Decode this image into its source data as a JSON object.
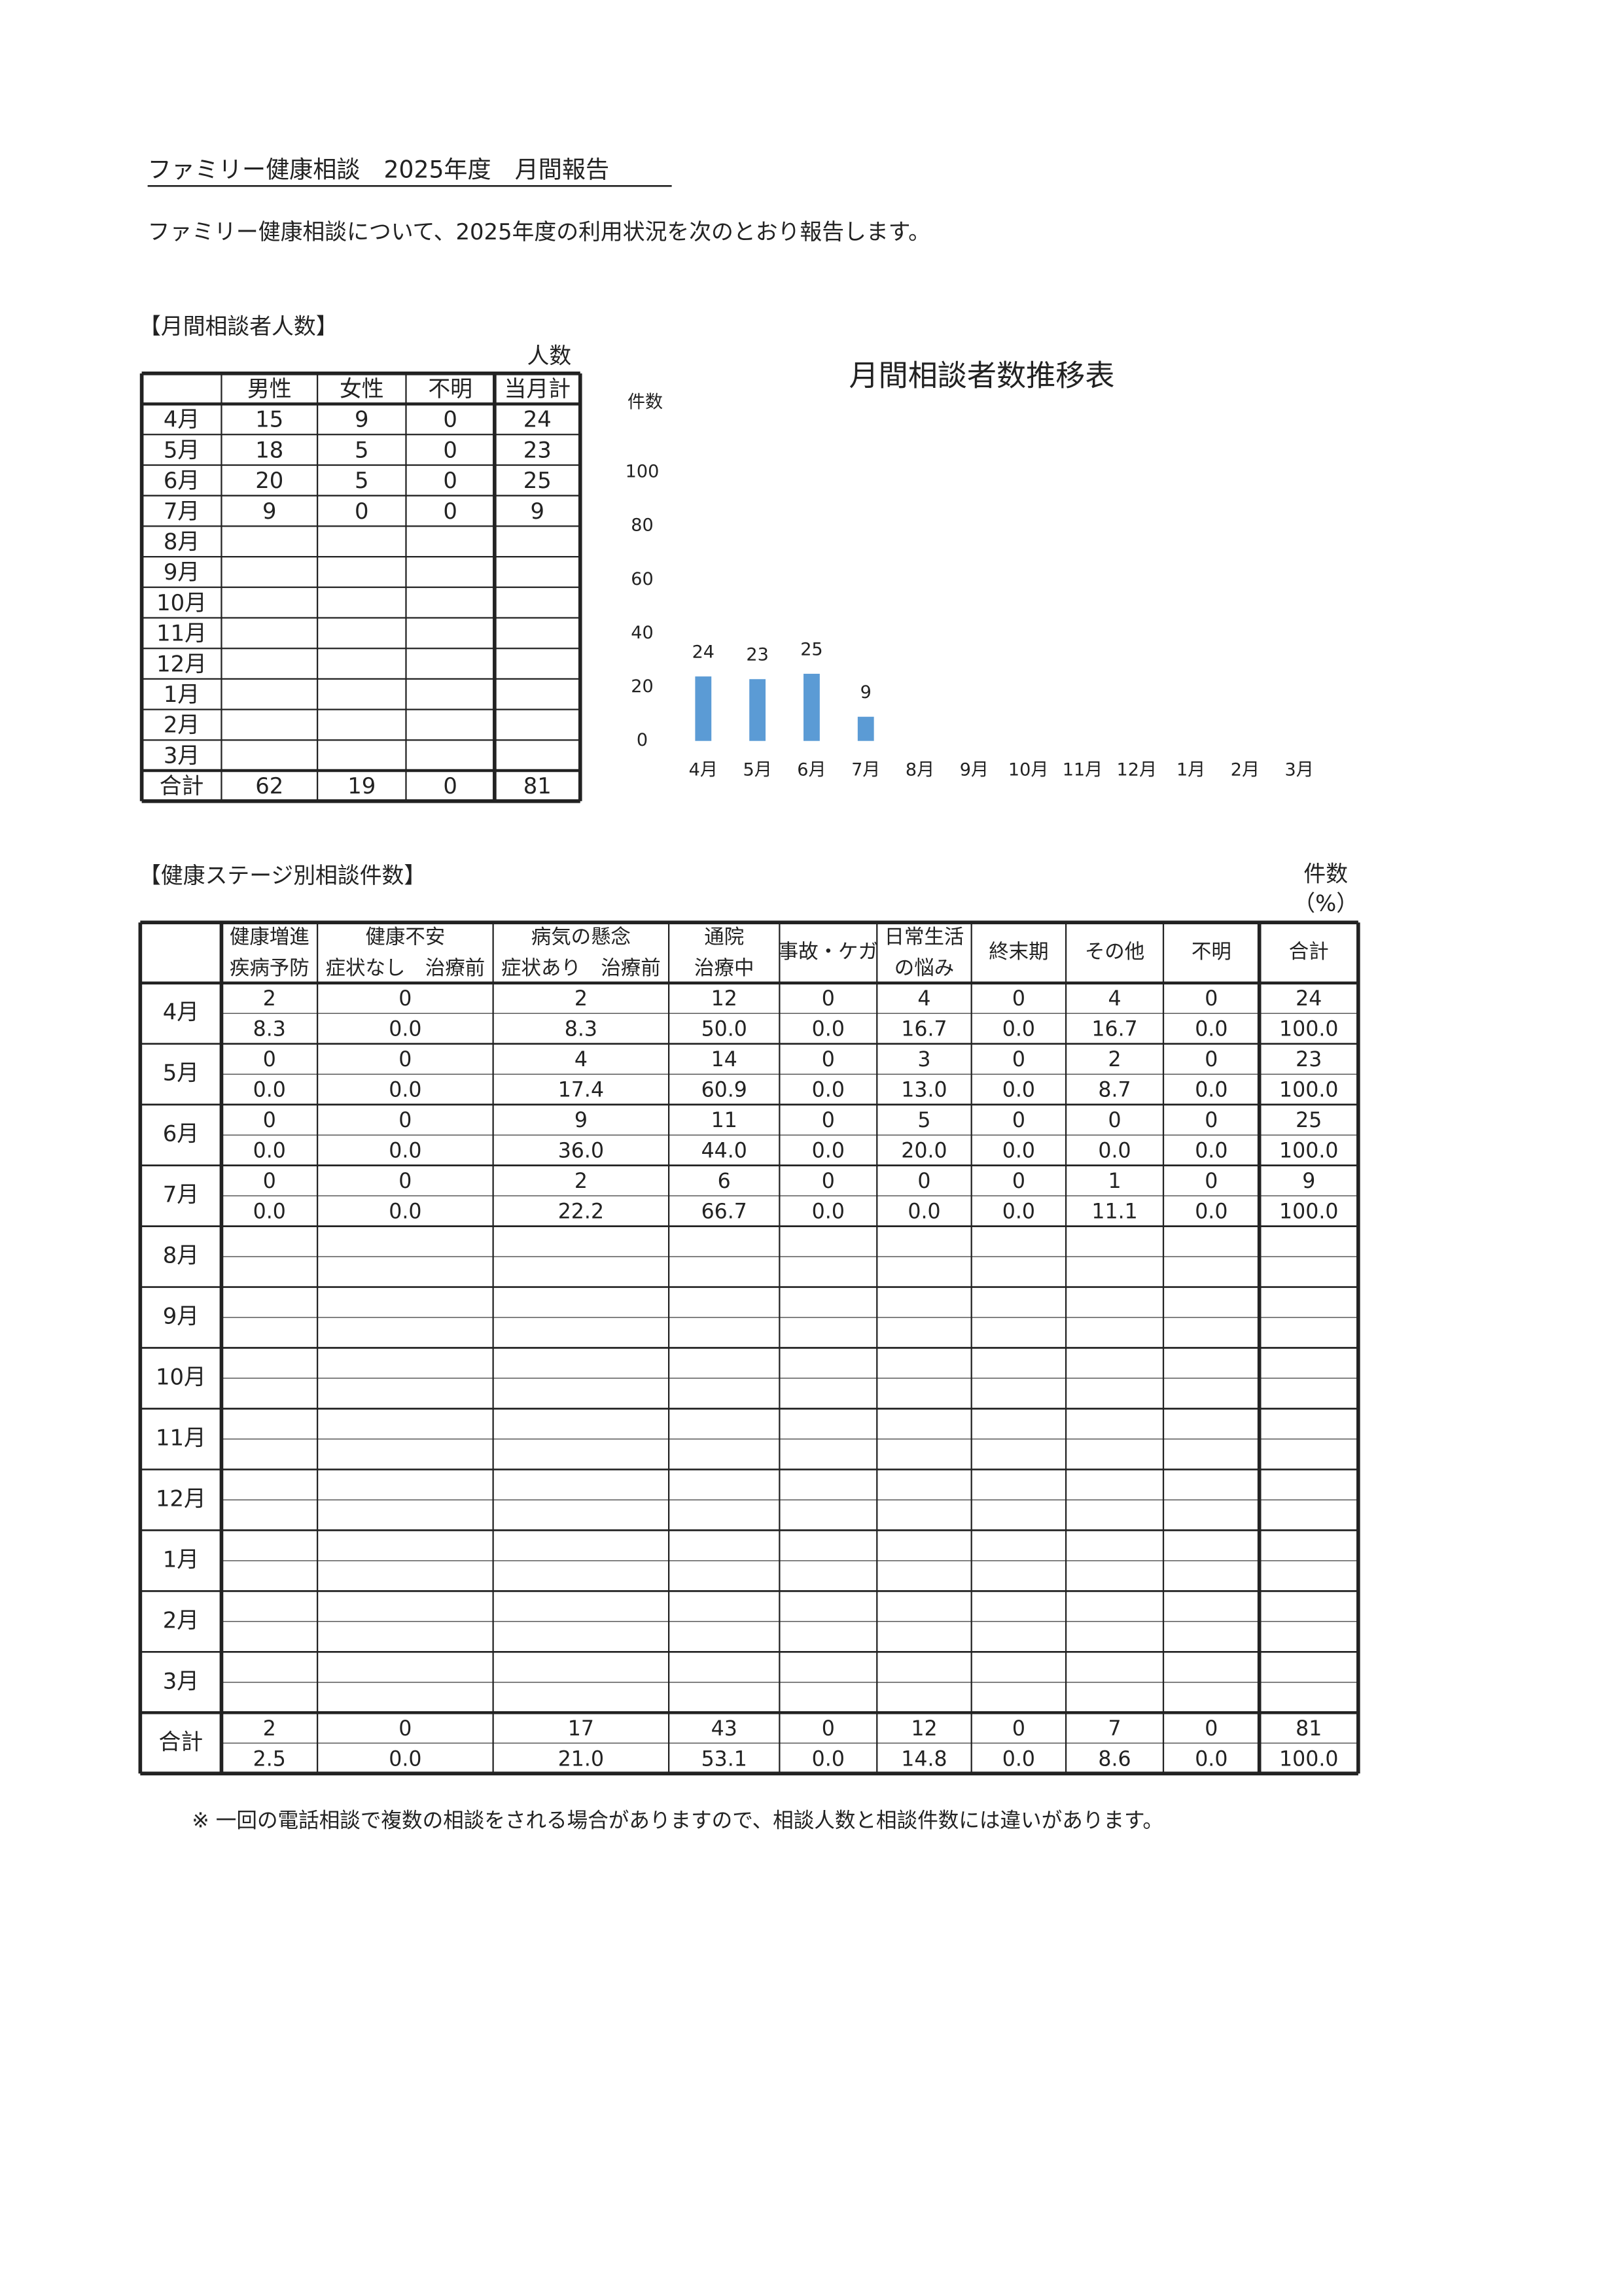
{
  "header": {
    "title": "ファミリー健康相談　2025年度　月間報告",
    "intro": "ファミリー健康相談について、2025年度の利用状況を次のとおり報告します。"
  },
  "table1": {
    "section": "【月間相談者人数】",
    "unit": "人数",
    "columns": [
      "男性",
      "女性",
      "不明",
      "当月計"
    ],
    "rows": [
      {
        "month": "4月",
        "cells": [
          15,
          9,
          0,
          24
        ]
      },
      {
        "month": "5月",
        "cells": [
          18,
          5,
          0,
          23
        ]
      },
      {
        "month": "6月",
        "cells": [
          20,
          5,
          0,
          25
        ]
      },
      {
        "month": "7月",
        "cells": [
          9,
          0,
          0,
          9
        ]
      },
      {
        "month": "8月",
        "cells": []
      },
      {
        "month": "9月",
        "cells": []
      },
      {
        "month": "10月",
        "cells": []
      },
      {
        "month": "11月",
        "cells": []
      },
      {
        "month": "12月",
        "cells": []
      },
      {
        "month": "1月",
        "cells": []
      },
      {
        "month": "2月",
        "cells": []
      },
      {
        "month": "3月",
        "cells": []
      },
      {
        "month": "合計",
        "cells": [
          62,
          19,
          0,
          81
        ]
      }
    ]
  },
  "chart_data": {
    "type": "bar",
    "title": "月間相談者数推移表",
    "y_label": "件数",
    "categories": [
      "4月",
      "5月",
      "6月",
      "7月",
      "8月",
      "9月",
      "10月",
      "11月",
      "12月",
      "1月",
      "2月",
      "3月"
    ],
    "values": [
      24,
      23,
      25,
      9,
      null,
      null,
      null,
      null,
      null,
      null,
      null,
      null
    ],
    "color": "#5b9bd5",
    "ylim": [
      0,
      100
    ],
    "yticks": [
      0,
      20,
      40,
      60,
      80,
      100
    ],
    "grid": false
  },
  "table2": {
    "section": "【健康ステージ別相談件数】",
    "unit": "件数",
    "unit2": "（%）",
    "headers": [
      [
        "健康増進",
        "疾病予防"
      ],
      [
        "健康不安",
        "症状なし　治療前"
      ],
      [
        "病気の懸念",
        "症状あり　治療前"
      ],
      [
        "通院",
        "治療中"
      ],
      [
        "事故・ケガ"
      ],
      [
        "日常生活",
        "の悩み"
      ],
      [
        "終末期"
      ],
      [
        "その他"
      ],
      [
        "不明"
      ],
      [
        "合計"
      ]
    ],
    "rows": [
      {
        "month": "4月",
        "counts": [
          2,
          0,
          2,
          12,
          0,
          4,
          0,
          4,
          0,
          24
        ],
        "percents": [
          "8.3",
          "0.0",
          "8.3",
          "50.0",
          "0.0",
          "16.7",
          "0.0",
          "16.7",
          "0.0",
          "100.0"
        ]
      },
      {
        "month": "5月",
        "counts": [
          0,
          0,
          4,
          14,
          0,
          3,
          0,
          2,
          0,
          23
        ],
        "percents": [
          "0.0",
          "0.0",
          "17.4",
          "60.9",
          "0.0",
          "13.0",
          "0.0",
          "8.7",
          "0.0",
          "100.0"
        ]
      },
      {
        "month": "6月",
        "counts": [
          0,
          0,
          9,
          11,
          0,
          5,
          0,
          0,
          0,
          25
        ],
        "percents": [
          "0.0",
          "0.0",
          "36.0",
          "44.0",
          "0.0",
          "20.0",
          "0.0",
          "0.0",
          "0.0",
          "100.0"
        ]
      },
      {
        "month": "7月",
        "counts": [
          0,
          0,
          2,
          6,
          0,
          0,
          0,
          1,
          0,
          9
        ],
        "percents": [
          "0.0",
          "0.0",
          "22.2",
          "66.7",
          "0.0",
          "0.0",
          "0.0",
          "11.1",
          "0.0",
          "100.0"
        ]
      },
      {
        "month": "8月",
        "counts": [],
        "percents": []
      },
      {
        "month": "9月",
        "counts": [],
        "percents": []
      },
      {
        "month": "10月",
        "counts": [],
        "percents": []
      },
      {
        "month": "11月",
        "counts": [],
        "percents": []
      },
      {
        "month": "12月",
        "counts": [],
        "percents": []
      },
      {
        "month": "1月",
        "counts": [],
        "percents": []
      },
      {
        "month": "2月",
        "counts": [],
        "percents": []
      },
      {
        "month": "3月",
        "counts": [],
        "percents": []
      },
      {
        "month": "合計",
        "counts": [
          2,
          0,
          17,
          43,
          0,
          12,
          0,
          7,
          0,
          81
        ],
        "percents": [
          "2.5",
          "0.0",
          "21.0",
          "53.1",
          "0.0",
          "14.8",
          "0.0",
          "8.6",
          "0.0",
          "100.0"
        ]
      }
    ]
  },
  "note": "※ 一回の電話相談で複数の相談をされる場合がありますので、相談人数と相談件数には違いがあります。"
}
